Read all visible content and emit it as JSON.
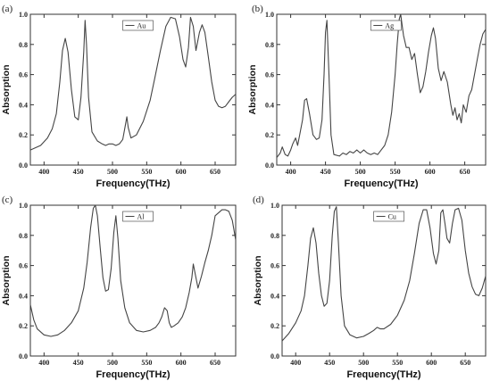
{
  "chart_data": [
    {
      "type": "line",
      "panel": "(a)",
      "legend": "Au",
      "xlabel": "Frequency(THz)",
      "ylabel": "Absorption",
      "xlim": [
        380,
        680
      ],
      "ylim": [
        0.0,
        1.0
      ],
      "xticks": [
        400,
        450,
        500,
        550,
        600,
        650
      ],
      "xtick_labels": [
        "400",
        "450",
        "500",
        "550",
        "600",
        "650"
      ],
      "yticks": [
        0.0,
        0.2,
        0.4,
        0.6,
        0.8,
        1.0
      ],
      "ytick_labels": [
        "0.0",
        "0.2",
        "0.4",
        "0.6",
        "0.8",
        "1.0"
      ],
      "series": [
        {
          "x": [
            380,
            395,
            405,
            412,
            418,
            423,
            427,
            431,
            435,
            440,
            445,
            450,
            454,
            458,
            460,
            462,
            465,
            470,
            478,
            485,
            490,
            495,
            500,
            505,
            510,
            515,
            519,
            521,
            523,
            527,
            535,
            545,
            555,
            562,
            570,
            578,
            585,
            592,
            598,
            603,
            607,
            611,
            614,
            618,
            622,
            627,
            631,
            635,
            640,
            645,
            650,
            655,
            660,
            665,
            670,
            675,
            680
          ],
          "y": [
            0.1,
            0.13,
            0.18,
            0.24,
            0.34,
            0.55,
            0.76,
            0.84,
            0.75,
            0.5,
            0.32,
            0.3,
            0.45,
            0.75,
            0.96,
            0.8,
            0.45,
            0.22,
            0.16,
            0.14,
            0.13,
            0.14,
            0.14,
            0.13,
            0.14,
            0.17,
            0.27,
            0.32,
            0.25,
            0.18,
            0.2,
            0.29,
            0.43,
            0.58,
            0.76,
            0.92,
            0.98,
            0.97,
            0.85,
            0.7,
            0.65,
            0.78,
            0.98,
            0.92,
            0.76,
            0.88,
            0.93,
            0.88,
            0.72,
            0.55,
            0.43,
            0.39,
            0.38,
            0.39,
            0.42,
            0.45,
            0.47
          ]
        }
      ]
    },
    {
      "type": "line",
      "panel": "(b)",
      "legend": "Ag",
      "xlabel": "Frequency(THz)",
      "ylabel": "Absorption",
      "xlim": [
        380,
        680
      ],
      "ylim": [
        0.0,
        1.0
      ],
      "xticks": [
        400,
        450,
        500,
        550,
        600,
        650
      ],
      "xtick_labels": [
        "400",
        "450",
        "500",
        "550",
        "600",
        "650"
      ],
      "yticks": [
        0.0,
        0.2,
        0.4,
        0.6,
        0.8,
        1.0
      ],
      "ytick_labels": [
        "0.0",
        "0.2",
        "0.4",
        "0.6",
        "0.8",
        "1.0"
      ],
      "series": [
        {
          "x": [
            380,
            385,
            388,
            392,
            396,
            400,
            403,
            407,
            410,
            413,
            417,
            420,
            423,
            427,
            432,
            437,
            441,
            445,
            448,
            450,
            452,
            455,
            458,
            462,
            470,
            475,
            480,
            485,
            490,
            495,
            500,
            505,
            510,
            515,
            520,
            525,
            530,
            535,
            540,
            545,
            550,
            553,
            556,
            558,
            562,
            566,
            570,
            574,
            578,
            582,
            586,
            590,
            594,
            598,
            602,
            605,
            608,
            612,
            616,
            620,
            625,
            630,
            633,
            636,
            639,
            642,
            645,
            648,
            652,
            656,
            660,
            664,
            668,
            672,
            676,
            680
          ],
          "y": [
            0.05,
            0.08,
            0.12,
            0.07,
            0.06,
            0.1,
            0.14,
            0.18,
            0.13,
            0.2,
            0.3,
            0.43,
            0.44,
            0.34,
            0.2,
            0.17,
            0.18,
            0.3,
            0.6,
            0.88,
            0.96,
            0.6,
            0.2,
            0.07,
            0.06,
            0.08,
            0.07,
            0.09,
            0.08,
            0.1,
            0.08,
            0.1,
            0.08,
            0.07,
            0.08,
            0.07,
            0.1,
            0.13,
            0.2,
            0.35,
            0.6,
            0.8,
            0.97,
            1.0,
            0.86,
            0.78,
            0.78,
            0.7,
            0.74,
            0.6,
            0.48,
            0.52,
            0.62,
            0.75,
            0.86,
            0.91,
            0.84,
            0.64,
            0.56,
            0.62,
            0.55,
            0.4,
            0.33,
            0.38,
            0.3,
            0.34,
            0.28,
            0.4,
            0.35,
            0.46,
            0.5,
            0.6,
            0.7,
            0.8,
            0.87,
            0.9
          ]
        }
      ]
    },
    {
      "type": "line",
      "panel": "(c)",
      "legend": "Al",
      "xlabel": "Frequency(THz)",
      "ylabel": "Absorption",
      "xlim": [
        380,
        680
      ],
      "ylim": [
        0.0,
        1.0
      ],
      "xticks": [
        400,
        450,
        500,
        550,
        600,
        650
      ],
      "xtick_labels": [
        "400",
        "450",
        "500",
        "550",
        "600",
        "650"
      ],
      "yticks": [
        0.0,
        0.2,
        0.4,
        0.6,
        0.8,
        1.0
      ],
      "ytick_labels": [
        "0.0",
        "0.2",
        "0.4",
        "0.6",
        "0.8",
        "1.0"
      ],
      "series": [
        {
          "x": [
            380,
            385,
            390,
            400,
            410,
            420,
            430,
            440,
            450,
            458,
            463,
            468,
            472,
            475,
            478,
            482,
            486,
            490,
            494,
            498,
            502,
            505,
            508,
            512,
            518,
            525,
            535,
            545,
            555,
            563,
            568,
            572,
            576,
            580,
            583,
            586,
            590,
            596,
            602,
            607,
            612,
            616,
            618,
            621,
            625,
            630,
            635,
            640,
            645,
            650,
            660,
            665,
            670,
            675,
            680
          ],
          "y": [
            0.34,
            0.24,
            0.18,
            0.14,
            0.13,
            0.14,
            0.17,
            0.22,
            0.3,
            0.45,
            0.62,
            0.85,
            0.98,
            1.0,
            0.93,
            0.72,
            0.52,
            0.43,
            0.44,
            0.58,
            0.82,
            0.93,
            0.78,
            0.5,
            0.32,
            0.22,
            0.17,
            0.16,
            0.17,
            0.19,
            0.22,
            0.26,
            0.32,
            0.3,
            0.22,
            0.19,
            0.2,
            0.22,
            0.26,
            0.32,
            0.42,
            0.52,
            0.61,
            0.54,
            0.45,
            0.53,
            0.62,
            0.7,
            0.8,
            0.93,
            0.97,
            0.97,
            0.96,
            0.9,
            0.77
          ]
        }
      ]
    },
    {
      "type": "line",
      "panel": "(d)",
      "legend": "Cu",
      "xlabel": "Frequency(THz)",
      "ylabel": "Absorption",
      "xlim": [
        380,
        680
      ],
      "ylim": [
        0.0,
        1.0
      ],
      "xticks": [
        400,
        450,
        500,
        550,
        600,
        650
      ],
      "xtick_labels": [
        "400",
        "450",
        "500",
        "550",
        "600",
        "650"
      ],
      "yticks": [
        0.0,
        0.2,
        0.4,
        0.6,
        0.8,
        1.0
      ],
      "ytick_labels": [
        "0.0",
        "0.2",
        "0.4",
        "0.6",
        "0.8",
        "1.0"
      ],
      "series": [
        {
          "x": [
            380,
            390,
            400,
            408,
            413,
            418,
            422,
            426,
            430,
            434,
            438,
            442,
            446,
            450,
            454,
            457,
            460,
            463,
            467,
            472,
            480,
            490,
            500,
            508,
            515,
            520,
            525,
            530,
            540,
            550,
            560,
            568,
            575,
            582,
            588,
            593,
            598,
            603,
            607,
            611,
            614,
            617,
            620,
            623,
            627,
            631,
            635,
            640,
            645,
            650,
            655,
            660,
            665,
            670,
            675,
            680
          ],
          "y": [
            0.1,
            0.15,
            0.22,
            0.3,
            0.4,
            0.6,
            0.78,
            0.85,
            0.75,
            0.55,
            0.4,
            0.33,
            0.35,
            0.5,
            0.8,
            0.96,
            0.99,
            0.75,
            0.4,
            0.2,
            0.14,
            0.12,
            0.13,
            0.15,
            0.17,
            0.19,
            0.18,
            0.18,
            0.21,
            0.27,
            0.37,
            0.5,
            0.68,
            0.88,
            0.97,
            0.97,
            0.85,
            0.68,
            0.61,
            0.7,
            0.95,
            0.97,
            0.88,
            0.78,
            0.75,
            0.88,
            0.97,
            0.98,
            0.9,
            0.7,
            0.55,
            0.46,
            0.41,
            0.4,
            0.45,
            0.53
          ]
        }
      ]
    }
  ]
}
